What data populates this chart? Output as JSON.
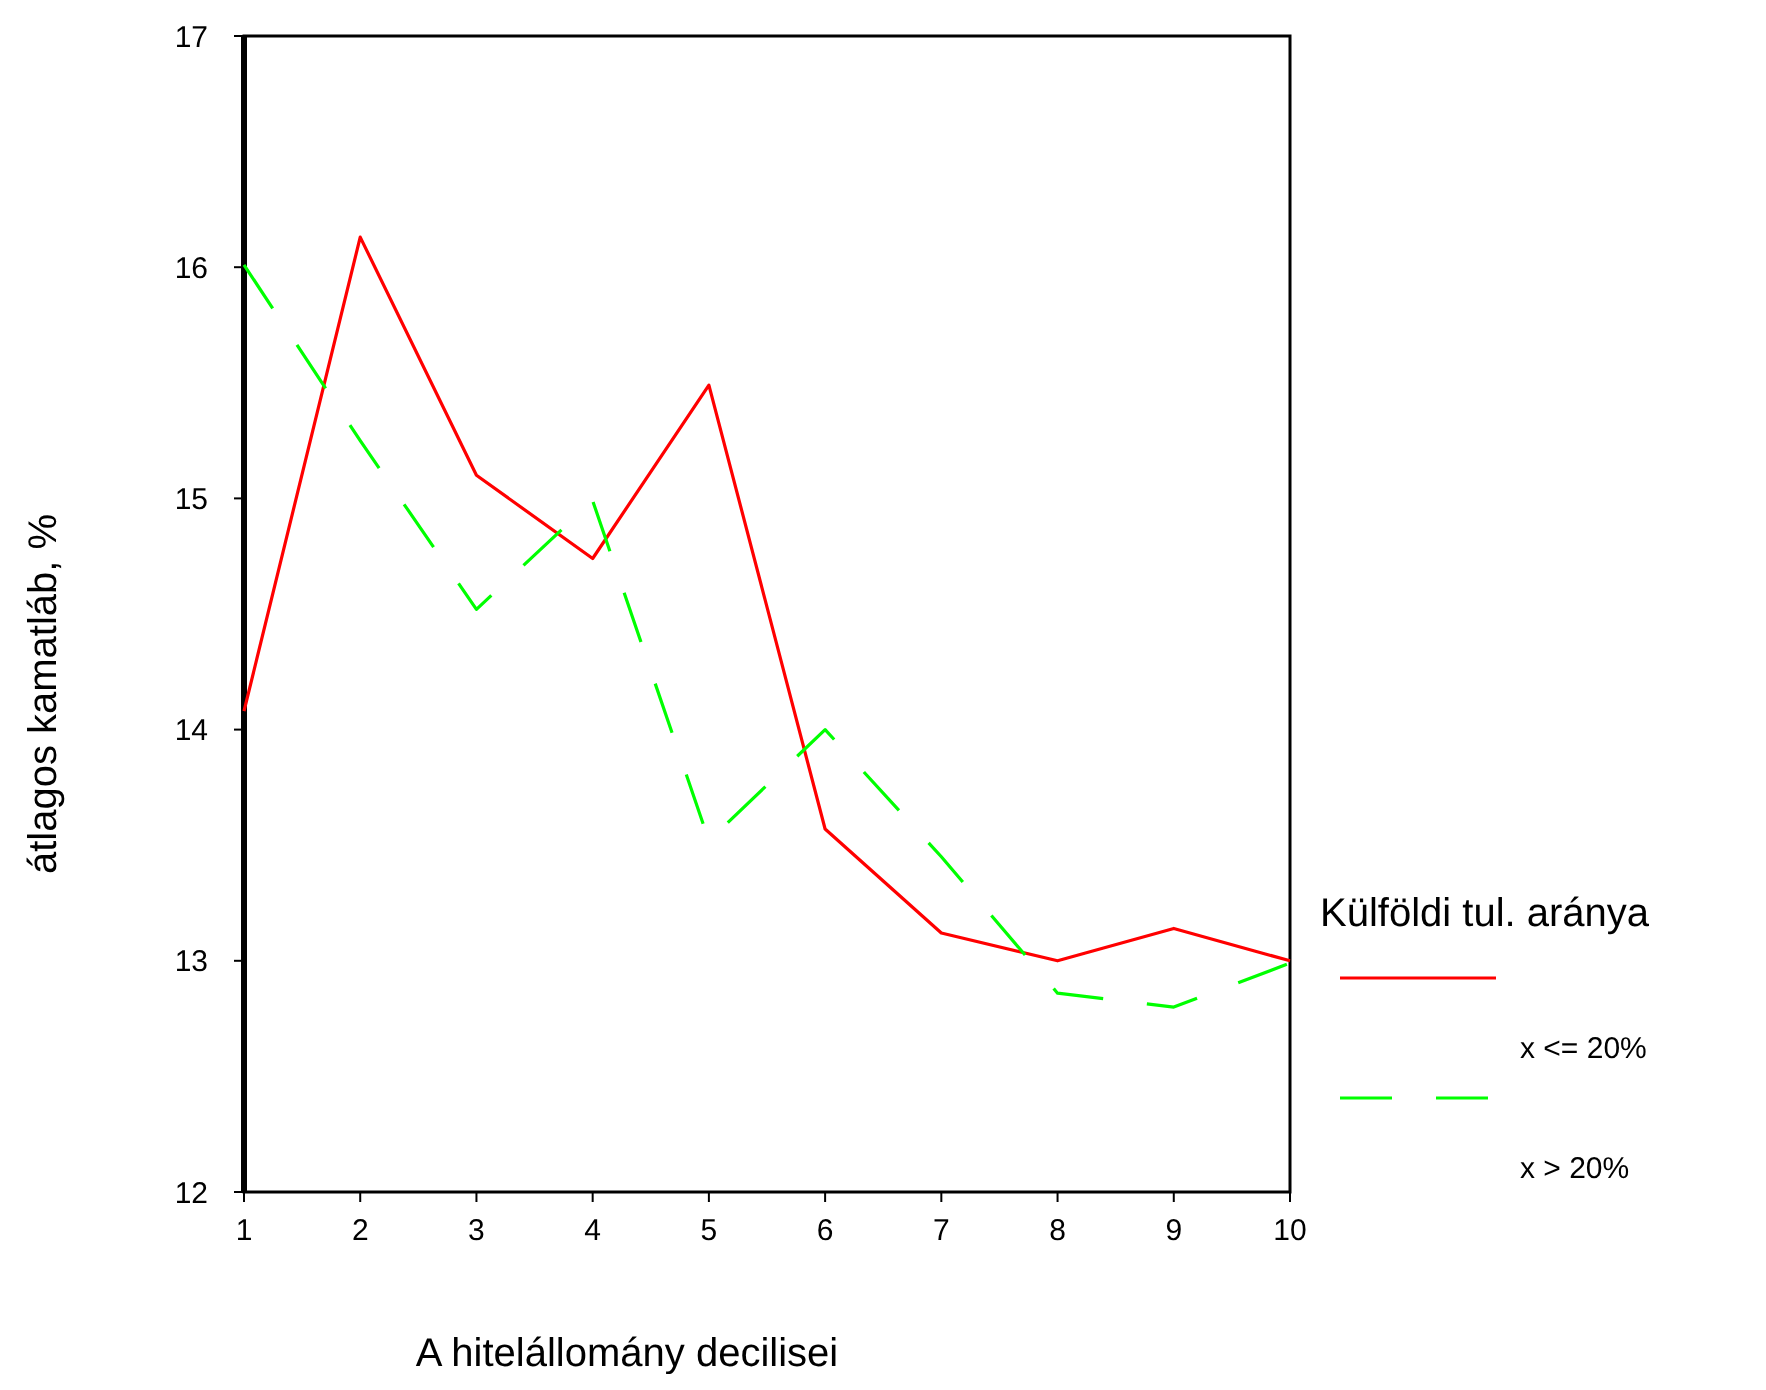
{
  "chart_data": {
    "type": "line",
    "xlabel": "A hitelállomány decilisei",
    "ylabel": "átlagos kamatláb, %",
    "legend_title": "Külföldi tul. aránya",
    "x": [
      1,
      2,
      3,
      4,
      5,
      6,
      7,
      8,
      9,
      10
    ],
    "series": [
      {
        "name": "x <= 20%",
        "color": "#ff0000",
        "line_style": "solid",
        "values": [
          14.08,
          16.13,
          15.1,
          14.74,
          15.49,
          13.57,
          13.12,
          13.0,
          13.14,
          13.0
        ]
      },
      {
        "name": "x > 20%",
        "color": "#00ff00",
        "line_style": "dashed",
        "values": [
          16.01,
          15.25,
          14.52,
          14.99,
          13.52,
          14.0,
          13.45,
          12.86,
          12.8,
          12.99
        ]
      }
    ],
    "xlim": [
      1,
      10
    ],
    "xticks": [
      1,
      2,
      3,
      4,
      5,
      6,
      7,
      8,
      9,
      10
    ],
    "ylim": [
      12,
      17
    ],
    "yticks": [
      12,
      13,
      14,
      15,
      16,
      17
    ],
    "grid": false,
    "legend": "right"
  }
}
